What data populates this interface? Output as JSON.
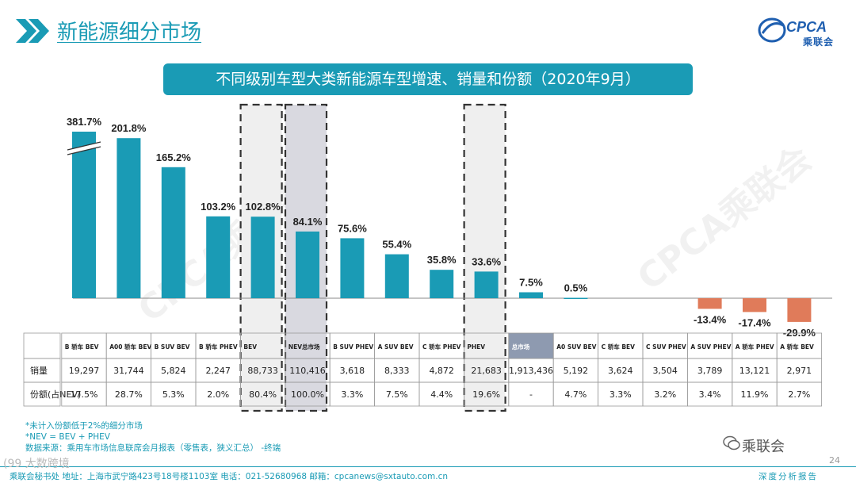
{
  "header": {
    "title": "新能源细分市场",
    "logo_text": "CPCA",
    "logo_sub": "乘联会"
  },
  "chart_data": {
    "type": "bar",
    "title": "不同级别车型大类新能源车型增速、销量和份额（2020年9月）",
    "categories": [
      "B 轿车 BEV",
      "A00 轿车 BEV",
      "B SUV BEV",
      "B 轿车 PHEV",
      "BEV",
      "NEV总市场",
      "B SUV PHEV",
      "A SUV BEV",
      "C 轿车 PHEV",
      "PHEV",
      "总市场",
      "A0 SUV BEV",
      "C 轿车 BEV",
      "C SUV PHEV",
      "A SUV PHEV",
      "A 轿车 PHEV",
      "A 轿车 BEV"
    ],
    "growth": [
      381.7,
      201.8,
      165.2,
      103.2,
      102.8,
      84.1,
      75.6,
      55.4,
      35.8,
      33.6,
      7.5,
      0.5,
      null,
      null,
      -13.4,
      -17.4,
      -29.9
    ],
    "growth_labels": [
      "381.7%",
      "201.8%",
      "165.2%",
      "103.2%",
      "102.8%",
      "84.1%",
      "75.6%",
      "55.4%",
      "35.8%",
      "33.6%",
      "7.5%",
      "0.5%",
      "",
      "",
      "-13.4%",
      "-17.4%",
      "-29.9%"
    ],
    "highlighted": [
      "BEV",
      "NEV总市场",
      "PHEV"
    ],
    "axis_break_index": 0,
    "colors": {
      "positive": "#1a9bb5",
      "negative": "#e07b5a",
      "highlight_bg": "#efefef",
      "highlight_nev_bg": "#d9d9e0",
      "total_header": "#8e9ab0"
    },
    "table": {
      "row_labels": [
        "销量",
        "份额(占NEV)"
      ],
      "sales": [
        "19,297",
        "31,744",
        "5,824",
        "2,247",
        "88,733",
        "110,416",
        "3,618",
        "8,333",
        "4,872",
        "21,683",
        "1,913,436",
        "5,192",
        "3,624",
        "3,504",
        "3,789",
        "13,121",
        "2,971"
      ],
      "share": [
        "17.5%",
        "28.7%",
        "5.3%",
        "2.0%",
        "80.4%",
        "100.0%",
        "3.3%",
        "7.5%",
        "4.4%",
        "19.6%",
        "-",
        "4.7%",
        "3.3%",
        "3.2%",
        "3.4%",
        "11.9%",
        "2.7%"
      ]
    }
  },
  "notes": [
    "*未计入份额低于2%的细分市场",
    "*NEV = BEV + PHEV",
    "数据来源：乘用车市场信息联席会月报表（零售表，狭义汇总）  -终端"
  ],
  "footer": {
    "contact": "乘联会秘书处    地址：上海市武宁路423号18号楼1103室    电话：021-52680968    邮箱：cpcanews@sxtauto.com.cn",
    "right": "深度分析报告",
    "wechat": "乘联会",
    "page_number": "24",
    "watermark": "CPCA乘联会",
    "source_mark": "(99 大数跨境"
  }
}
